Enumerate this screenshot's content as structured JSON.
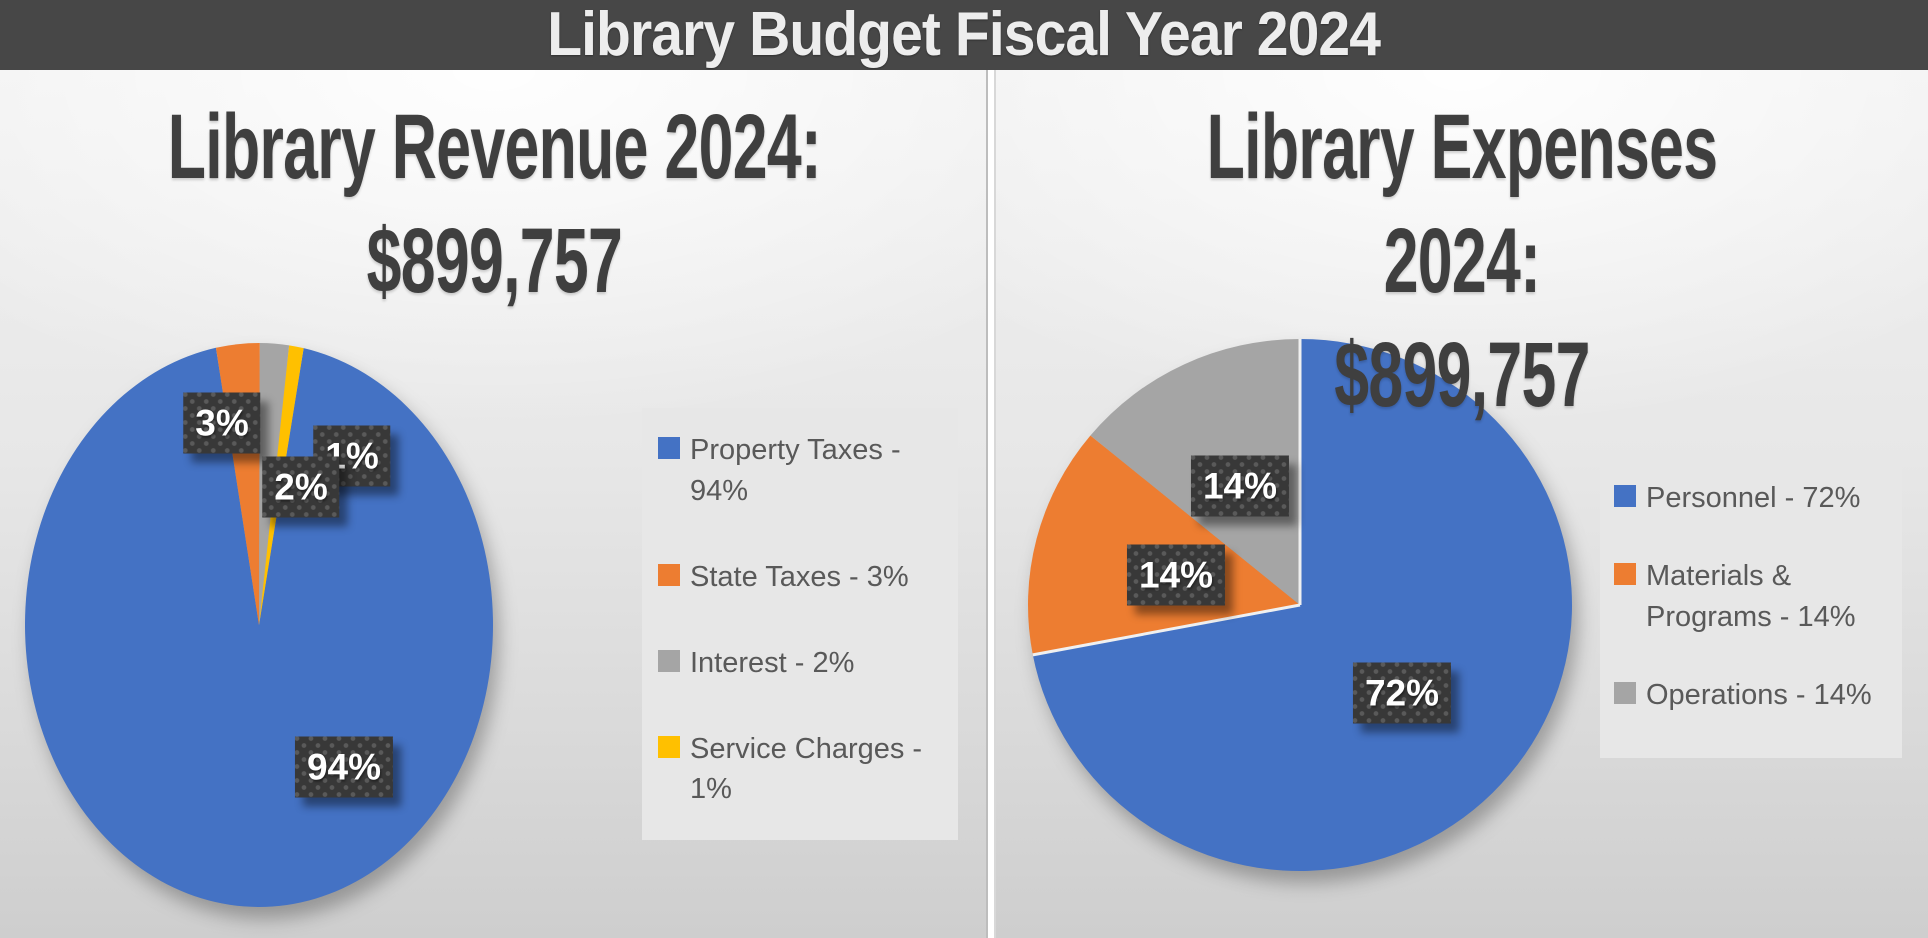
{
  "page": {
    "title": "Library Budget Fiscal Year 2024"
  },
  "colors": {
    "title_bar_bg": "#474747",
    "title_bar_text": "#ededed",
    "chart_title_text": "#3f3f3f",
    "legend_text": "#595959",
    "label_box_bg": "#383838",
    "label_box_text": "#ffffff",
    "palette": [
      "#4472C4",
      "#ED7D31",
      "#A5A5A5",
      "#FFC000"
    ]
  },
  "chart_data": [
    {
      "type": "pie",
      "title": "Library Revenue 2024:",
      "subtitle": "$899,757",
      "categories": [
        "Property Taxes",
        "State Taxes",
        "Interest",
        "Service Charges"
      ],
      "values": [
        94,
        3,
        2,
        1
      ],
      "unit": "percent",
      "slice_colors": [
        "#4472C4",
        "#ED7D31",
        "#A5A5A5",
        "#FFC000"
      ],
      "data_labels": [
        "94%",
        "3%",
        "2%",
        "1%"
      ],
      "start_angle": 11,
      "legend_position": "right",
      "legend": [
        {
          "swatch": "#4472C4",
          "label": "Property Taxes - 94%"
        },
        {
          "swatch": "#ED7D31",
          "label": "State Taxes - 3%"
        },
        {
          "swatch": "#A5A5A5",
          "label": "Interest - 2%"
        },
        {
          "swatch": "#FFC000",
          "label": "Service Charges - 1%"
        }
      ]
    },
    {
      "type": "pie",
      "title": "Library Expenses 2024:",
      "subtitle": "$899,757",
      "categories": [
        "Personnel",
        "Materials & Programs",
        "Operations"
      ],
      "values": [
        72,
        14,
        14
      ],
      "unit": "percent",
      "slice_colors": [
        "#4472C4",
        "#ED7D31",
        "#A5A5A5"
      ],
      "data_labels": [
        "72%",
        "14%",
        "14%"
      ],
      "start_angle": 0,
      "legend_position": "right",
      "legend": [
        {
          "swatch": "#4472C4",
          "label": "Personnel - 72%"
        },
        {
          "swatch": "#ED7D31",
          "label": "Materials & Programs - 14%"
        },
        {
          "swatch": "#A5A5A5",
          "label": "Operations - 14%"
        }
      ]
    }
  ]
}
